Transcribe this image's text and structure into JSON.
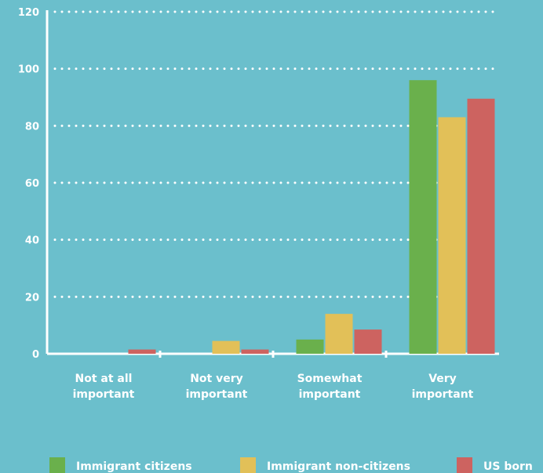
{
  "chart_data": {
    "type": "bar",
    "categories": [
      [
        "Not at all",
        "important"
      ],
      [
        "Not very",
        "important"
      ],
      [
        "Somewhat",
        "important"
      ],
      [
        "Very",
        "important"
      ]
    ],
    "series": [
      {
        "name": "Immigrant citizens",
        "color": "#6ab04c",
        "values": [
          0,
          0,
          5,
          96
        ]
      },
      {
        "name": "Immigrant non-citizens",
        "color": "#e2c058",
        "values": [
          0,
          4.5,
          14,
          83
        ]
      },
      {
        "name": "US born",
        "color": "#cd6360",
        "values": [
          1.5,
          1.5,
          8.5,
          89.5
        ]
      }
    ],
    "yticks": [
      0,
      20,
      40,
      60,
      80,
      100,
      120
    ],
    "ylim": [
      0,
      120
    ],
    "grid": true,
    "legend_position": "bottom",
    "colors": {
      "background": "#6bbfcc",
      "axis": "#ffffff",
      "grid": "#ffffff"
    }
  }
}
